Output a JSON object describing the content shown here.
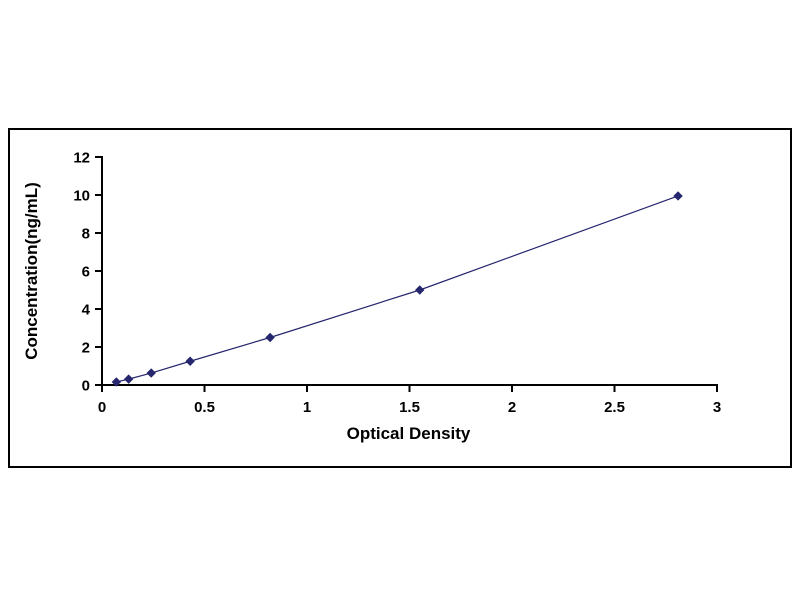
{
  "chart_data": {
    "type": "line",
    "title": "",
    "xlabel": "Optical Density",
    "ylabel": "Concentration(ng/mL)",
    "x": [
      0.07,
      0.13,
      0.24,
      0.43,
      0.82,
      1.55,
      2.81
    ],
    "y": [
      0.16,
      0.31,
      0.63,
      1.25,
      2.5,
      5.0,
      9.95
    ],
    "xlim": [
      0,
      3
    ],
    "ylim": [
      0,
      12
    ],
    "xticks": [
      0,
      0.5,
      1,
      1.5,
      2,
      2.5,
      3
    ],
    "xtick_labels": [
      "0",
      "0.5",
      "1",
      "1.5",
      "2",
      "2.5",
      "3"
    ],
    "yticks": [
      0,
      2,
      4,
      6,
      8,
      10,
      12
    ],
    "ytick_labels": [
      "0",
      "2",
      "4",
      "6",
      "8",
      "10",
      "12"
    ],
    "grid": false,
    "legend": null,
    "marker": "diamond",
    "line_color": "#26266e",
    "marker_color": "#26266e",
    "axis_color": "#000000",
    "tick_font_size": 15,
    "background": "#ffffff"
  }
}
